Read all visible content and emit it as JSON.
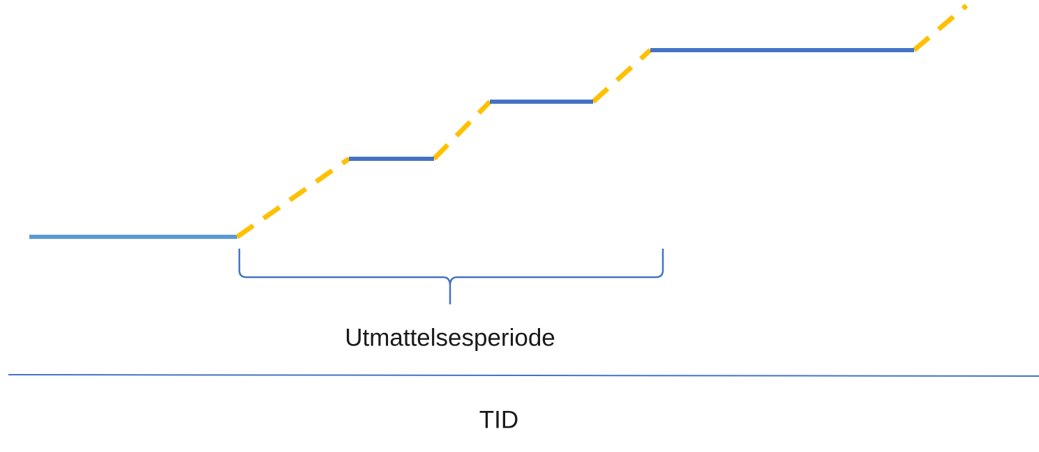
{
  "brace_label": "Utmattelsesperiode",
  "axis_label": "TID"
}
